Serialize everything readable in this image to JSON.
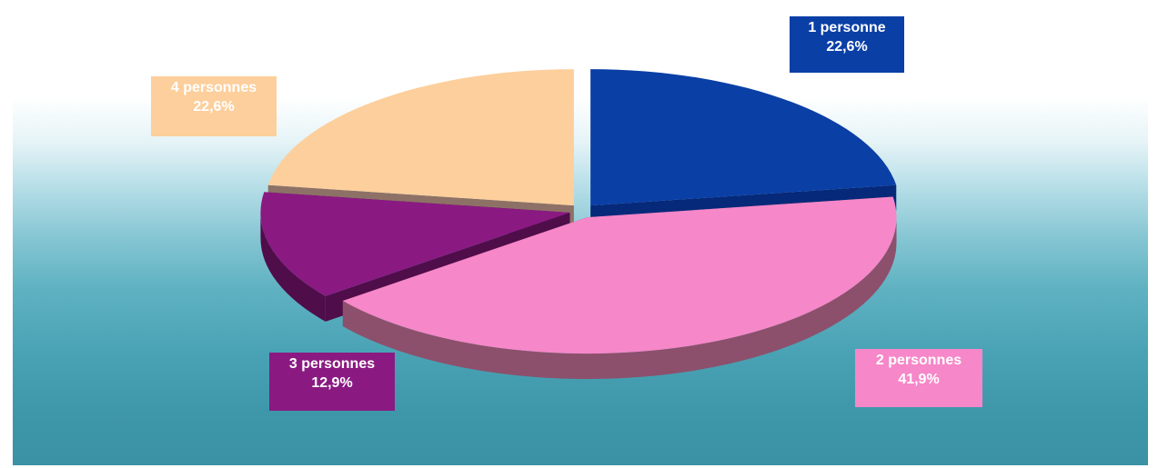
{
  "chart_data": {
    "type": "pie",
    "title": "",
    "slices": [
      {
        "label": "1 personne",
        "value": 22.6,
        "value_text": "22,6%",
        "color": "#0a3fa6",
        "side_color": "#06297a"
      },
      {
        "label": "2 personnes",
        "value": 41.9,
        "value_text": "41,9%",
        "color": "#f687c8",
        "side_color": "#8c506c"
      },
      {
        "label": "3 personnes",
        "value": 12.9,
        "value_text": "12,9%",
        "color": "#8a1a82",
        "side_color": "#4f0d4a"
      },
      {
        "label": "4 personnes",
        "value": 22.6,
        "value_text": "22,6%",
        "color": "#fdcf9c",
        "side_color": "#8e7166"
      }
    ],
    "style": "3d-exploded",
    "legend": "none"
  }
}
